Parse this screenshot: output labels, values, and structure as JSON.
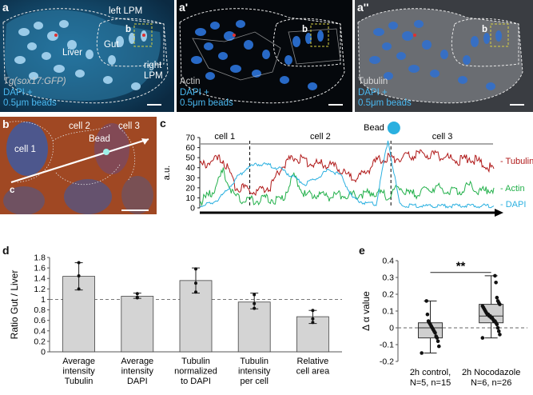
{
  "colors": {
    "tubulin": "#b01818",
    "actin": "#22b04a",
    "dapi": "#2ab0e0",
    "bar_fill": "#d4d4d4",
    "box_fill": "#cfcfcf"
  },
  "panel_a": {
    "label": "a",
    "left_lpm": "left LPM",
    "liver": "Liver",
    "gut": "Gut",
    "right_lpm_line1": "right",
    "right_lpm_line2": "LPM",
    "b_marker": "b",
    "genotype": "Tg(sox17:GFP)",
    "stain_line1": "DAPI +",
    "stain_line2": "0.5μm beads"
  },
  "panel_a1": {
    "label": "a'",
    "b_marker": "b",
    "stain": "Actin",
    "stain_line1": "DAPI +",
    "stain_line2": "0.5μm beads"
  },
  "panel_a2": {
    "label": "a''",
    "b_marker": "b",
    "stain": "Tubulin",
    "stain_line1": "DAPI +",
    "stain_line2": "0.5μm beads"
  },
  "panel_b": {
    "label": "b",
    "cell1": "cell 1",
    "cell2": "cell 2",
    "cell3": "cell 3",
    "bead": "Bead",
    "c_marker": "c"
  },
  "panel_c": {
    "label": "c",
    "ylabel": "a.u.",
    "yticks": [
      "0",
      "10",
      "20",
      "30",
      "40",
      "50",
      "60",
      "70"
    ],
    "cell1": "cell 1",
    "cell2": "cell 2",
    "cell3": "cell 3",
    "bead": "Bead",
    "legend_tubulin": "- Tubulin",
    "legend_actin": "- Actin",
    "legend_dapi": "- DAPI"
  },
  "panel_d": {
    "label": "d",
    "cats_line1": [
      "Average",
      "Average",
      "Tubulin",
      "Tubulin",
      "Relative"
    ],
    "cats_line2": [
      "intensity",
      "intensity",
      "normalized",
      "intensity",
      "cell area"
    ],
    "cats_line3": [
      "Tubulin",
      "DAPI",
      "to DAPI",
      "per cell",
      ""
    ]
  },
  "panel_e": {
    "label": "e",
    "significance": "**",
    "cat1_line1": "2h control,",
    "cat1_line2": "N=5, n=15",
    "cat2_line1": "2h Nocodazole",
    "cat2_line2": "N=6, n=26"
  },
  "chart_data": [
    {
      "type": "line",
      "panel": "c",
      "ylabel": "a.u.",
      "ylim": [
        0,
        70
      ],
      "yticks": [
        0,
        10,
        20,
        30,
        40,
        50,
        60,
        70
      ],
      "regions": [
        {
          "name": "cell 1",
          "x_range": [
            0,
            0.17
          ]
        },
        {
          "name": "cell 2",
          "x_range": [
            0.17,
            0.65
          ]
        },
        {
          "name": "cell 3",
          "x_range": [
            0.65,
            1.0
          ]
        }
      ],
      "series": [
        {
          "name": "Tubulin",
          "x": [
            0,
            0.04,
            0.08,
            0.12,
            0.16,
            0.2,
            0.24,
            0.28,
            0.32,
            0.36,
            0.4,
            0.44,
            0.48,
            0.52,
            0.56,
            0.6,
            0.64,
            0.68,
            0.72,
            0.76,
            0.8,
            0.84,
            0.88,
            0.92,
            0.96,
            1.0
          ],
          "values": [
            41,
            47,
            48,
            22,
            18,
            17,
            21,
            42,
            51,
            46,
            44,
            43,
            37,
            29,
            34,
            46,
            50,
            49,
            52,
            54,
            52,
            50,
            47,
            50,
            44,
            39
          ]
        },
        {
          "name": "Actin",
          "x": [
            0,
            0.04,
            0.08,
            0.12,
            0.16,
            0.2,
            0.24,
            0.28,
            0.32,
            0.36,
            0.4,
            0.44,
            0.48,
            0.52,
            0.56,
            0.6,
            0.64,
            0.68,
            0.72,
            0.76,
            0.8,
            0.84,
            0.88,
            0.92,
            0.96,
            1.0
          ],
          "values": [
            6,
            14,
            36,
            10,
            8,
            8,
            9,
            8,
            32,
            12,
            14,
            11,
            13,
            12,
            14,
            16,
            12,
            20,
            13,
            16,
            21,
            18,
            17,
            22,
            16,
            20
          ]
        },
        {
          "name": "DAPI",
          "x": [
            0,
            0.04,
            0.08,
            0.12,
            0.16,
            0.2,
            0.24,
            0.28,
            0.32,
            0.36,
            0.4,
            0.44,
            0.48,
            0.52,
            0.56,
            0.6,
            0.64,
            0.68,
            0.72,
            0.76,
            0.8,
            0.84,
            0.88,
            0.92,
            0.96,
            1.0
          ],
          "values": [
            2,
            4,
            13,
            28,
            40,
            44,
            42,
            38,
            30,
            24,
            30,
            38,
            32,
            10,
            5,
            4,
            68,
            3,
            2,
            2,
            2,
            2,
            2,
            2,
            2,
            2
          ]
        }
      ]
    },
    {
      "type": "bar",
      "panel": "d",
      "ylabel": "Ratio Gut / Liver",
      "ylim": [
        0,
        1.8
      ],
      "yticks": [
        "0",
        "0.2",
        "0.4",
        "0.6",
        "0.8",
        "1",
        "1.2",
        "1.4",
        "1.6",
        "1.8"
      ],
      "reference_line": 1,
      "categories": [
        "Average intensity Tubulin",
        "Average intensity DAPI",
        "Tubulin normalized to DAPI",
        "Tubulin intensity per cell",
        "Relative cell area"
      ],
      "values": [
        1.44,
        1.06,
        1.36,
        0.95,
        0.67
      ],
      "error_low": [
        1.18,
        1.02,
        1.12,
        0.82,
        0.54
      ],
      "error_high": [
        1.7,
        1.12,
        1.6,
        1.12,
        0.79
      ],
      "points": [
        [
          1.2,
          1.45,
          1.7
        ],
        [
          1.03,
          1.04,
          1.11
        ],
        [
          1.14,
          1.31,
          1.58
        ],
        [
          0.83,
          0.92,
          1.09
        ],
        [
          0.56,
          0.63,
          0.79
        ]
      ]
    },
    {
      "type": "box",
      "panel": "e",
      "ylabel": "Δ α value",
      "ylim": [
        -0.2,
        0.4
      ],
      "yticks": [
        "-0.2",
        "-0.1",
        "0",
        "0.1",
        "0.2",
        "0.3",
        "0.4"
      ],
      "categories": [
        "2h control, N=5, n=15",
        "2h Nocodazole N=6, n=26"
      ],
      "boxes": [
        {
          "min": -0.15,
          "q1": -0.06,
          "median": 0.0,
          "q3": 0.03,
          "max": 0.16
        },
        {
          "min": -0.06,
          "q1": 0.03,
          "median": 0.07,
          "q3": 0.14,
          "max": 0.31
        }
      ],
      "points": [
        [
          -0.15,
          -0.11,
          -0.08,
          -0.06,
          -0.05,
          -0.03,
          -0.02,
          -0.01,
          0.0,
          0.01,
          0.02,
          0.03,
          0.04,
          0.08,
          0.16
        ],
        [
          -0.06,
          -0.04,
          -0.02,
          0.0,
          0.02,
          0.03,
          0.04,
          0.04,
          0.05,
          0.06,
          0.06,
          0.07,
          0.07,
          0.08,
          0.08,
          0.09,
          0.1,
          0.11,
          0.12,
          0.13,
          0.14,
          0.15,
          0.16,
          0.18,
          0.27,
          0.31
        ]
      ],
      "significance": "**"
    }
  ]
}
